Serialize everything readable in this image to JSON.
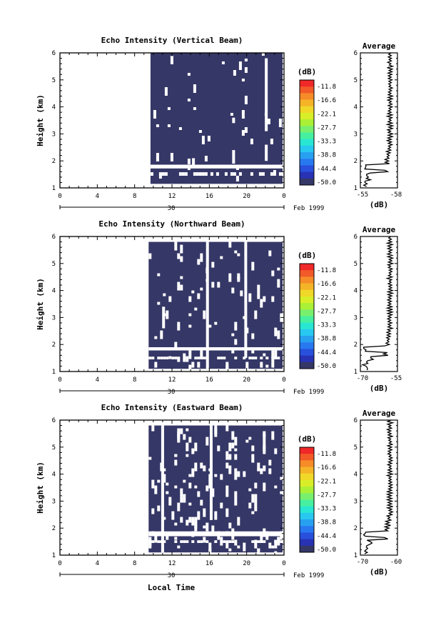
{
  "figure": {
    "xlabel": "Local Time",
    "date_row": {
      "day": "30",
      "month_year": "Feb 1999"
    }
  },
  "colorbar": {
    "unit": "(dB)",
    "ticks": [
      "-11.8",
      "-16.6",
      "-22.1",
      "-27.7",
      "-33.3",
      "-38.8",
      "-44.4",
      "-50.0"
    ],
    "colors": [
      "#f02828",
      "#f25a28",
      "#f58c28",
      "#f5b428",
      "#f0d828",
      "#d8ee28",
      "#aaf036",
      "#78f06e",
      "#46f0a0",
      "#28e6d2",
      "#28c8f0",
      "#28a0f0",
      "#2878f0",
      "#2850dc",
      "#2832b4",
      "#353766"
    ]
  },
  "chart_data": [
    {
      "type": "heatmap",
      "title": "Echo Intensity (Vertical Beam)",
      "ylabel": "Height (km)",
      "xlim": [
        0,
        24
      ],
      "ylim": [
        1,
        6
      ],
      "xticks": [
        "0",
        "4",
        "8",
        "12",
        "16",
        "20",
        "0"
      ],
      "yticks": [
        "1",
        "2",
        "3",
        "4",
        "5",
        "6"
      ],
      "data_start_hour": 9.7,
      "data_top_km": 6.0,
      "data_bottom_km": 1.15,
      "fill_color": "#353766",
      "gap_band_km": [
        1.72,
        1.86
      ],
      "gap_rows_km": [
        1.45,
        1.58
      ],
      "gap_columns": [
        {
          "hour": 18.6,
          "from_km": 1.9,
          "to_km": 2.4
        },
        {
          "hour": 18.6,
          "from_km": 3.4,
          "to_km": 3.6
        },
        {
          "hour": 22.1,
          "from_km": 2.0,
          "to_km": 2.6
        },
        {
          "hour": 22.1,
          "from_km": 3.1,
          "to_km": 5.8
        },
        {
          "hour": 14.3,
          "from_km": 1.8,
          "to_km": 2.1
        }
      ],
      "profile": {
        "title": "Average",
        "xlabel": "(dB)",
        "xticks": [
          "-55",
          "-58"
        ],
        "yticks": [
          "1",
          "2",
          "3",
          "4",
          "5",
          "6"
        ]
      }
    },
    {
      "type": "heatmap",
      "title": "Echo Intensity (Northward Beam)",
      "ylabel": "Height (km)",
      "xlim": [
        0,
        24
      ],
      "ylim": [
        1,
        6
      ],
      "xticks": [
        "0",
        "4",
        "8",
        "12",
        "16",
        "20",
        "0"
      ],
      "yticks": [
        "1",
        "2",
        "3",
        "4",
        "5",
        "6"
      ],
      "data_start_hour": 9.5,
      "data_top_km": 5.8,
      "data_bottom_km": 1.1,
      "fill_color": "#353766",
      "gap_band_km": [
        1.78,
        1.9
      ],
      "gap_rows_km": [
        1.45,
        1.55
      ],
      "gap_columns": [
        {
          "hour": 15.8,
          "from_km": 1.1,
          "to_km": 5.8
        },
        {
          "hour": 19.9,
          "from_km": 1.5,
          "to_km": 5.8
        },
        {
          "hour": 11.1,
          "from_km": 2.6,
          "to_km": 3.4
        }
      ],
      "profile": {
        "title": "Average",
        "xlabel": "(dB)",
        "xticks": [
          "-70",
          "-55"
        ],
        "yticks": [
          "1",
          "2",
          "3",
          "4",
          "5",
          "6"
        ]
      }
    },
    {
      "type": "heatmap",
      "title": "Echo Intensity (Eastward Beam)",
      "ylabel": "Height (km)",
      "xlim": [
        0,
        24
      ],
      "ylim": [
        1,
        6
      ],
      "xticks": [
        "0",
        "4",
        "8",
        "12",
        "16",
        "20",
        "0"
      ],
      "yticks": [
        "1",
        "2",
        "3",
        "4",
        "5",
        "6"
      ],
      "data_start_hour": 9.5,
      "data_top_km": 5.8,
      "data_bottom_km": 1.1,
      "fill_color": "#353766",
      "gap_band_km": [
        1.7,
        1.88
      ],
      "gap_rows_km": [
        1.45,
        1.55
      ],
      "gap_columns": [
        {
          "hour": 11.0,
          "from_km": 1.1,
          "to_km": 5.8
        },
        {
          "hour": 16.2,
          "from_km": 2.3,
          "to_km": 5.8
        }
      ],
      "profile": {
        "title": "Average",
        "xlabel": "(dB)",
        "xticks": [
          "-70",
          "-60"
        ],
        "yticks": [
          "1",
          "2",
          "3",
          "4",
          "5",
          "6"
        ]
      }
    }
  ]
}
